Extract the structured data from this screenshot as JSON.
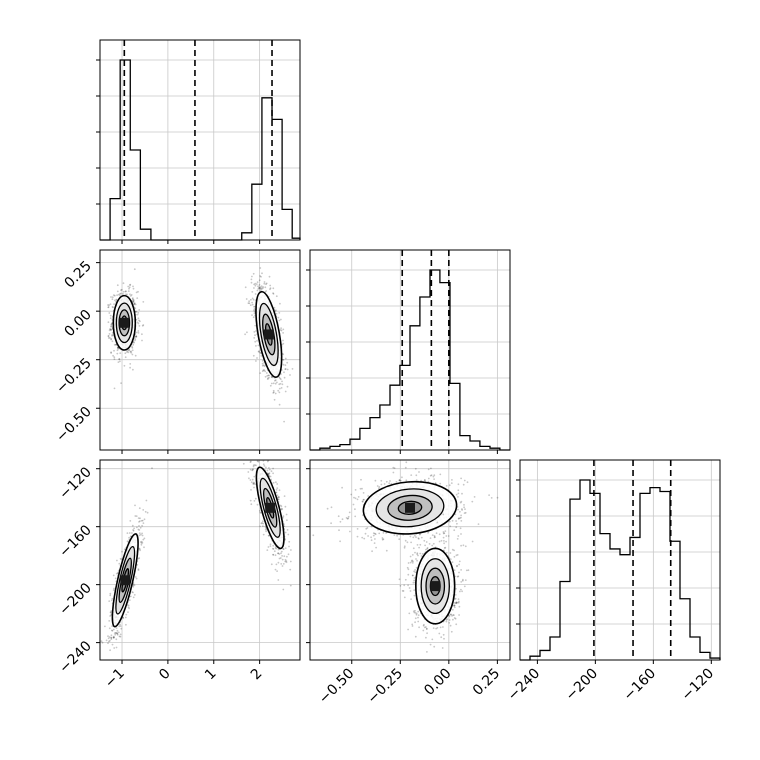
{
  "chart_data": {
    "type": "corner",
    "title": "",
    "grid": true,
    "parameters": [
      "",
      "",
      ""
    ],
    "ticks": {
      "p0": {
        "values": [
          -1,
          0,
          1,
          2
        ],
        "labels": [
          "−1",
          "0",
          "1",
          "2"
        ]
      },
      "p1": {
        "values": [
          -0.5,
          -0.25,
          0.0,
          0.25
        ],
        "labels": [
          "−0.50",
          "−0.25",
          "0.00",
          "0.25"
        ]
      },
      "p2": {
        "values": [
          -240,
          -200,
          -160,
          -120
        ],
        "labels": [
          "−240",
          "−200",
          "−160",
          "−120"
        ]
      }
    },
    "ranges": {
      "p0": [
        -1.48,
        2.88
      ],
      "p1": [
        -0.715,
        0.315
      ],
      "p2": [
        -252,
        -114
      ]
    },
    "quantiles": {
      "p0": [
        -0.95,
        0.59,
        2.27
      ],
      "p1": [
        -0.24,
        -0.09,
        0.0
      ],
      "p2": [
        -201,
        -174,
        -148
      ]
    },
    "histograms": {
      "p0": {
        "bins": [
          -1.48,
          -1.26,
          -1.04,
          -0.82,
          -0.6,
          -0.37,
          -0.15,
          0.07,
          0.29,
          0.51,
          0.73,
          0.95,
          1.17,
          1.39,
          1.61,
          1.83,
          2.05,
          2.27,
          2.49,
          2.71,
          2.88
        ],
        "counts": [
          0,
          0.23,
          1.0,
          0.5,
          0.06,
          0,
          0,
          0,
          0,
          0,
          0,
          0,
          0,
          0,
          0.04,
          0.31,
          0.79,
          0.67,
          0.17,
          0.01
        ]
      },
      "p1": {
        "bins": [
          -0.715,
          -0.664,
          -0.612,
          -0.561,
          -0.509,
          -0.458,
          -0.406,
          -0.355,
          -0.303,
          -0.252,
          -0.2,
          -0.149,
          -0.097,
          -0.046,
          0.006,
          0.057,
          0.109,
          0.16,
          0.212,
          0.263,
          0.315
        ],
        "counts": [
          0,
          0.01,
          0.02,
          0.03,
          0.06,
          0.12,
          0.18,
          0.25,
          0.36,
          0.47,
          0.69,
          0.85,
          1.0,
          0.93,
          0.37,
          0.08,
          0.05,
          0.02,
          0.01,
          0
        ]
      },
      "p2": {
        "bins": [
          -252,
          -245.1,
          -238.2,
          -231.3,
          -224.4,
          -217.5,
          -210.6,
          -203.7,
          -196.8,
          -189.9,
          -183,
          -176.1,
          -169.2,
          -162.3,
          -155.4,
          -148.5,
          -141.6,
          -134.7,
          -127.8,
          -120.9,
          -114
        ],
        "counts": [
          0,
          0.02,
          0.05,
          0.12,
          0.41,
          0.84,
          0.94,
          0.87,
          0.66,
          0.58,
          0.55,
          0.64,
          0.87,
          0.9,
          0.88,
          0.62,
          0.32,
          0.12,
          0.04,
          0.01
        ]
      }
    },
    "pairs": [
      {
        "x": "p0",
        "y": "p1",
        "clusters": [
          {
            "center": [
              -0.95,
              -0.06
            ],
            "sd": [
              0.12,
              0.07
            ],
            "rho": 0.0,
            "weight": 1
          },
          {
            "center": [
              2.2,
              -0.12
            ],
            "sd": [
              0.14,
              0.11
            ],
            "rho": -0.55,
            "weight": 1
          }
        ]
      },
      {
        "x": "p0",
        "y": "p2",
        "clusters": [
          {
            "center": [
              -0.93,
              -197
            ],
            "sd": [
              0.14,
              16
            ],
            "rho": 0.8,
            "weight": 1
          },
          {
            "center": [
              2.23,
              -147
            ],
            "sd": [
              0.15,
              14
            ],
            "rho": -0.75,
            "weight": 1
          }
        ]
      },
      {
        "x": "p1",
        "y": "p2",
        "clusters": [
          {
            "center": [
              -0.2,
              -147
            ],
            "sd": [
              0.12,
              9
            ],
            "rho": 0.1,
            "weight": 1
          },
          {
            "center": [
              -0.07,
              -201
            ],
            "sd": [
              0.05,
              13
            ],
            "rho": 0.0,
            "weight": 1
          }
        ]
      }
    ]
  }
}
